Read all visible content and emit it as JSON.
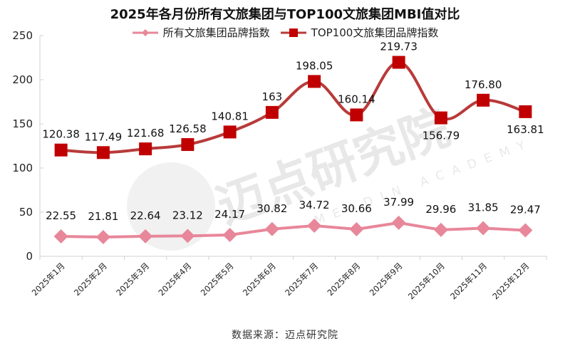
{
  "title": "2025年各月份所有文旅集团与TOP100文旅集团MBI值对比",
  "legend": [
    {
      "label": "所有文旅集团品牌指数",
      "color": "#e8879a",
      "marker": "diamond"
    },
    {
      "label": "TOP100文旅集团品牌指数",
      "color": "#c00000",
      "line_color": "#b83a3a",
      "marker": "square"
    }
  ],
  "source": "数据来源：迈点研究院",
  "watermark": {
    "cn": "迈点研究院",
    "en": "MEADIN ACADEMY"
  },
  "chart_data": {
    "type": "line",
    "title": "2025年各月份所有文旅集团与TOP100文旅集团MBI值对比",
    "xlabel": "",
    "ylabel": "",
    "categories": [
      "2025年1月",
      "2025年2月",
      "2025年3月",
      "2025年4月",
      "2025年5月",
      "2025年6月",
      "2025年7月",
      "2025年8月",
      "2025年9月",
      "2025年10月",
      "2025年11月",
      "2025年12月"
    ],
    "series": [
      {
        "name": "所有文旅集团品牌指数",
        "values": [
          22.55,
          21.81,
          22.64,
          23.12,
          24.17,
          30.82,
          34.72,
          30.66,
          37.99,
          29.96,
          31.85,
          29.47
        ],
        "labels": [
          "22.55",
          "21.81",
          "22.64",
          "23.12",
          "24.17",
          "30.82",
          "34.72",
          "30.66",
          "37.99",
          "29.96",
          "31.85",
          "29.47"
        ]
      },
      {
        "name": "TOP100文旅集团品牌指数",
        "values": [
          120.38,
          117.49,
          121.68,
          126.58,
          140.81,
          163,
          198.05,
          160.14,
          219.73,
          156.79,
          176.8,
          163.81
        ],
        "labels": [
          "120.38",
          "117.49",
          "121.68",
          "126.58",
          "140.81",
          "163",
          "198.05",
          "160.14",
          "219.73",
          "156.79",
          "176.80",
          "163.81"
        ]
      }
    ],
    "ylim": [
      0,
      250
    ],
    "yticks": [
      0,
      50,
      100,
      150,
      200,
      250
    ],
    "grid": false,
    "legend_position": "top",
    "smooth": true
  }
}
